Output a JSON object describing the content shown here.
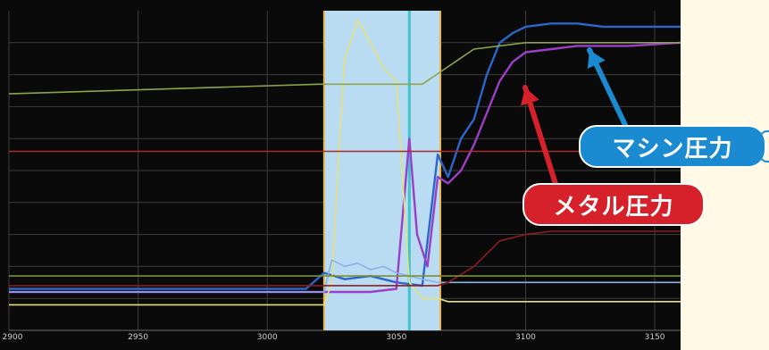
{
  "chart_data": {
    "type": "line",
    "xlim": [
      2900,
      3160
    ],
    "ylim": [
      0,
      100
    ],
    "x_ticks": [
      {
        "value": 2900,
        "label": "2900"
      },
      {
        "value": 2950,
        "label": "2950"
      },
      {
        "value": 3000,
        "label": "3000"
      },
      {
        "value": 3050,
        "label": "3050"
      },
      {
        "value": 3100,
        "label": "3100"
      },
      {
        "value": 3150,
        "label": "3150"
      }
    ],
    "highlight_region": {
      "x_start": 3022,
      "x_end": 3067,
      "color": "#b9dcf3",
      "edge_color": "#e8b54a"
    },
    "cursor_line": {
      "x": 3055,
      "color": "#3fc4c9"
    },
    "series": [
      {
        "color": "#2d66c9",
        "x": [
          2900,
          2920,
          2940,
          2960,
          2980,
          3000,
          3015,
          3022,
          3030,
          3040,
          3050,
          3060,
          3066,
          3070,
          3075,
          3080,
          3085,
          3090,
          3095,
          3100,
          3110,
          3120,
          3130,
          3140,
          3160
        ],
        "values": [
          13,
          13,
          13,
          13,
          13,
          13,
          13,
          18,
          16,
          17,
          15,
          14,
          55,
          48,
          60,
          66,
          80,
          90,
          93,
          95,
          96,
          96,
          95,
          95,
          95
        ]
      },
      {
        "color": "#9b3fc6",
        "x": [
          2900,
          2920,
          2940,
          2960,
          2980,
          3000,
          3020,
          3040,
          3050,
          3055,
          3058,
          3062,
          3066,
          3070,
          3075,
          3080,
          3085,
          3090,
          3095,
          3100,
          3110,
          3120,
          3130,
          3140,
          3160
        ],
        "values": [
          12,
          12,
          12,
          12,
          12,
          12,
          12,
          12,
          13,
          60,
          30,
          20,
          48,
          46,
          50,
          58,
          68,
          78,
          84,
          87,
          88,
          89,
          89,
          89,
          90
        ]
      },
      {
        "color": "#e6e07a",
        "x": [
          2900,
          3000,
          3022,
          3025,
          3028,
          3030,
          3035,
          3040,
          3045,
          3050,
          3055,
          3060,
          3066,
          3070,
          3160
        ],
        "values": [
          8,
          8,
          8,
          15,
          60,
          85,
          97,
          90,
          82,
          78,
          15,
          10,
          10,
          9,
          9
        ]
      },
      {
        "color": "#8bb0e8",
        "x": [
          2900,
          3000,
          3022,
          3025,
          3030,
          3035,
          3040,
          3045,
          3050,
          3055,
          3060,
          3066,
          3160
        ],
        "values": [
          12,
          12,
          12,
          22,
          20,
          21,
          19,
          20,
          18,
          17,
          16,
          15,
          15
        ]
      },
      {
        "color": "#8a1e1e",
        "x": [
          2900,
          3000,
          3022,
          3066,
          3070,
          3080,
          3090,
          3100,
          3110,
          3130,
          3160
        ],
        "values": [
          14,
          14,
          14,
          14,
          15,
          20,
          28,
          30,
          31,
          31,
          31
        ]
      },
      {
        "color": "#8ca44a",
        "x": [
          2900,
          3020,
          3060,
          3080,
          3100,
          3160
        ],
        "values": [
          74,
          77,
          77,
          88,
          90,
          90
        ]
      },
      {
        "color": "#a52a2a",
        "x": [
          2900,
          3160
        ],
        "values": [
          56,
          56
        ]
      },
      {
        "color": "#7a8f3a",
        "x": [
          2900,
          3160
        ],
        "values": [
          17,
          17
        ]
      }
    ]
  },
  "callouts": {
    "machine_pressure": {
      "label": "マシン圧力",
      "color": "#1a8bd1"
    },
    "metal_pressure": {
      "label": "メタル圧力",
      "color": "#d6202a"
    }
  }
}
